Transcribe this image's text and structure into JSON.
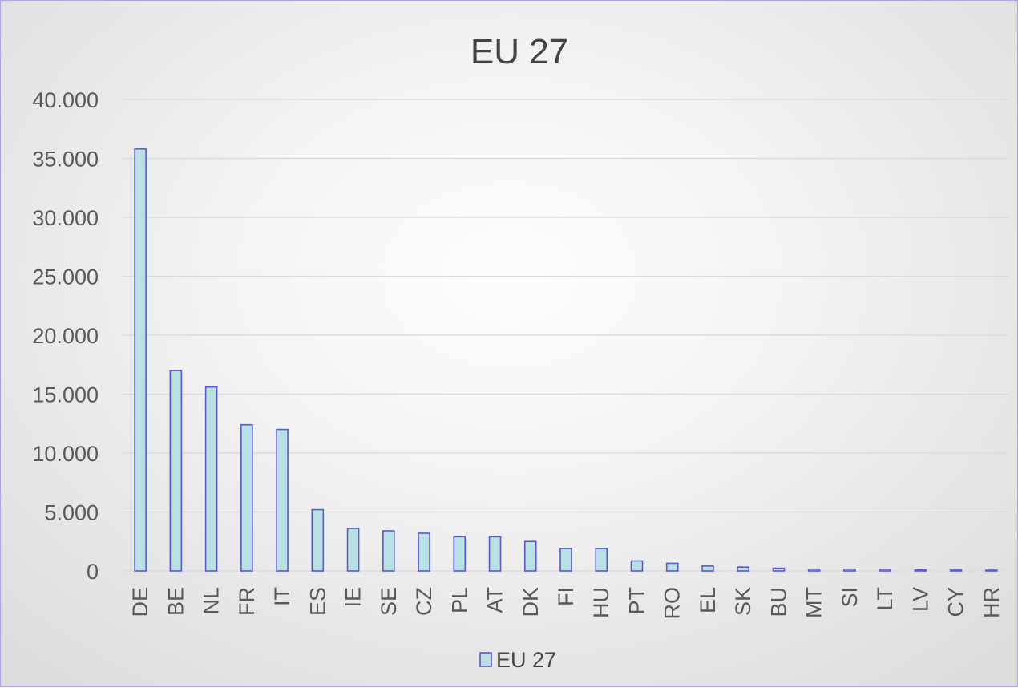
{
  "chart_data": {
    "type": "bar",
    "title": "EU 27",
    "xlabel": "",
    "ylabel": "",
    "categories": [
      "DE",
      "BE",
      "NL",
      "FR",
      "IT",
      "ES",
      "IE",
      "SE",
      "CZ",
      "PL",
      "AT",
      "DK",
      "FI",
      "HU",
      "PT",
      "RO",
      "EL",
      "SK",
      "BU",
      "MT",
      "SI",
      "LT",
      "LV",
      "CY",
      "HR"
    ],
    "series": [
      {
        "name": "EU 27",
        "values": [
          35800,
          17000,
          15600,
          12400,
          12000,
          5200,
          3600,
          3400,
          3200,
          2900,
          2900,
          2500,
          1900,
          1900,
          850,
          650,
          420,
          330,
          230,
          150,
          150,
          140,
          90,
          70,
          60
        ]
      }
    ],
    "ylim": [
      0,
      40000
    ],
    "yticks": [
      "0",
      "5.000",
      "10.000",
      "15.000",
      "20.000",
      "25.000",
      "30.000",
      "35.000",
      "40.000"
    ],
    "grid": true,
    "legend_position": "bottom",
    "colors": {
      "bar_fill": "#b9e1e4",
      "bar_stroke": "#5b57d6",
      "grid": "#d9d9d9",
      "text": "#595959",
      "border": "#a9a6e8"
    }
  }
}
